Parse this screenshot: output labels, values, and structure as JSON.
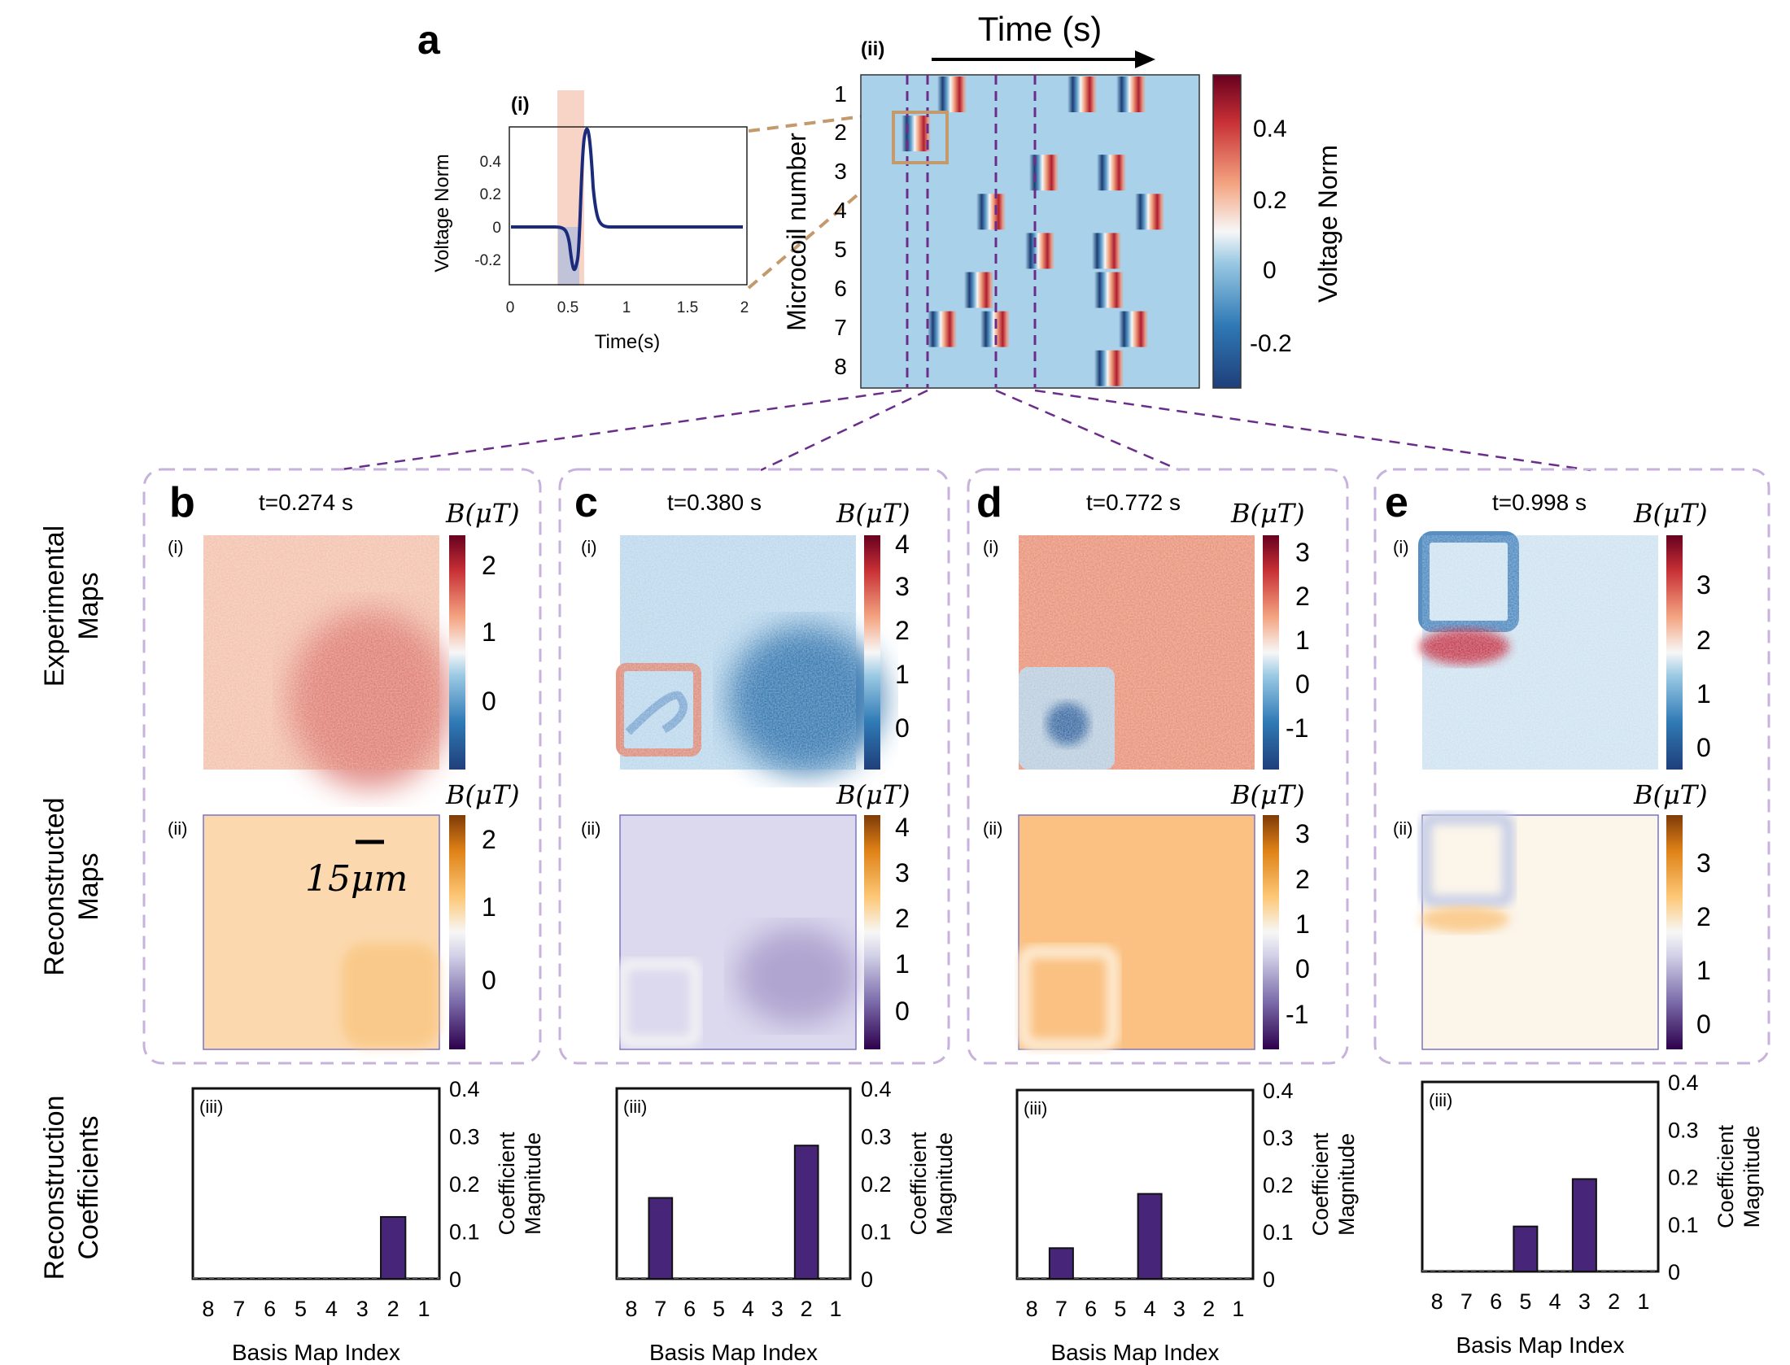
{
  "panel_a": {
    "letter": "a",
    "sub_i": "(i)",
    "sub_ii": "(ii)",
    "pulse_plot": {
      "ylabel": "Voltage Norm",
      "xlabel": "Time(s)",
      "yticks": [
        "0.4",
        "0.2",
        "0",
        "-0.2"
      ],
      "xticks": [
        "0",
        "0.5",
        "1",
        "1.5",
        "2"
      ]
    },
    "raster": {
      "time_label": "Time (s)",
      "ylabel": "Microcoil number",
      "rows": [
        "1",
        "2",
        "3",
        "4",
        "5",
        "6",
        "7",
        "8"
      ],
      "colorbar_label": "Voltage Norm",
      "colorbar_ticks": [
        "0.4",
        "0.2",
        "0",
        "-0.2"
      ]
    }
  },
  "row_labels": {
    "experimental": [
      "Experimental",
      "Maps"
    ],
    "reconstructed": [
      "Reconstructed",
      "Maps"
    ],
    "coefficients": [
      "Reconstruction",
      "Coefficients"
    ]
  },
  "panels": [
    {
      "letter": "b",
      "time": "t=0.274 s",
      "sub_i": "(i)",
      "sub_ii": "(ii)",
      "sub_iii": "(iii)",
      "cb_label_exp": "B(μT)",
      "cb_label_rec": "B(μT)",
      "exp_ticks": [
        "2",
        "1",
        "0"
      ],
      "rec_ticks": [
        "2",
        "1",
        "0"
      ],
      "scalebar": "15μm"
    },
    {
      "letter": "c",
      "time": "t=0.380 s",
      "sub_i": "(i)",
      "sub_ii": "(ii)",
      "sub_iii": "(iii)",
      "cb_label_exp": "B(μT)",
      "cb_label_rec": "B(μT)",
      "exp_ticks": [
        "4",
        "3",
        "2",
        "1",
        "0"
      ],
      "rec_ticks": [
        "4",
        "3",
        "2",
        "1",
        "0"
      ]
    },
    {
      "letter": "d",
      "time": "t=0.772 s",
      "sub_i": "(i)",
      "sub_ii": "(ii)",
      "sub_iii": "(iii)",
      "cb_label_exp": "B(μT)",
      "cb_label_rec": "B(μT)",
      "exp_ticks": [
        "3",
        "2",
        "1",
        "0",
        "-1"
      ],
      "rec_ticks": [
        "3",
        "2",
        "1",
        "0",
        "-1"
      ]
    },
    {
      "letter": "e",
      "time": "t=0.998 s",
      "sub_i": "(i)",
      "sub_ii": "(ii)",
      "sub_iii": "(iii)",
      "cb_label_exp": "B(μT)",
      "cb_label_rec": "B(μT)",
      "exp_ticks": [
        "3",
        "2",
        "1",
        "0"
      ],
      "rec_ticks": [
        "3",
        "2",
        "1",
        "0"
      ]
    }
  ],
  "chart_data": [
    {
      "type": "bar",
      "panel": "b",
      "categories": [
        "8",
        "7",
        "6",
        "5",
        "4",
        "3",
        "2",
        "1"
      ],
      "values": [
        0,
        0,
        0,
        0,
        0,
        0,
        0.13,
        0
      ],
      "xlabel": "Basis Map Index",
      "ylabel": [
        "Coefficient",
        "Magnitude"
      ],
      "ylim": [
        0,
        0.4
      ],
      "yticks": [
        "0.4",
        "0.3",
        "0.2",
        "0.1",
        "0"
      ]
    },
    {
      "type": "bar",
      "panel": "c",
      "categories": [
        "8",
        "7",
        "6",
        "5",
        "4",
        "3",
        "2",
        "1"
      ],
      "values": [
        0,
        0.17,
        0,
        0,
        0,
        0,
        0.28,
        0
      ],
      "xlabel": "Basis Map Index",
      "ylabel": [
        "Coefficient",
        "Magnitude"
      ],
      "ylim": [
        0,
        0.4
      ],
      "yticks": [
        "0.4",
        "0.3",
        "0.2",
        "0.1",
        "0"
      ]
    },
    {
      "type": "bar",
      "panel": "d",
      "categories": [
        "8",
        "7",
        "6",
        "5",
        "4",
        "3",
        "2",
        "1"
      ],
      "values": [
        0,
        0.065,
        0,
        0,
        0.18,
        0,
        0,
        0
      ],
      "xlabel": "Basis Map Index",
      "ylabel": [
        "Coefficient",
        "Magnitude"
      ],
      "ylim": [
        0,
        0.4
      ],
      "yticks": [
        "0.4",
        "0.3",
        "0.2",
        "0.1",
        "0"
      ]
    },
    {
      "type": "bar",
      "panel": "e",
      "categories": [
        "8",
        "7",
        "6",
        "5",
        "4",
        "3",
        "2",
        "1"
      ],
      "values": [
        0,
        0,
        0,
        0.095,
        0,
        0.195,
        0,
        0
      ],
      "xlabel": "Basis Map Index",
      "ylabel": [
        "Coefficient",
        "Magnitude"
      ],
      "ylim": [
        0,
        0.4
      ],
      "yticks": [
        "0.4",
        "0.3",
        "0.2",
        "0.1",
        "0"
      ]
    }
  ]
}
